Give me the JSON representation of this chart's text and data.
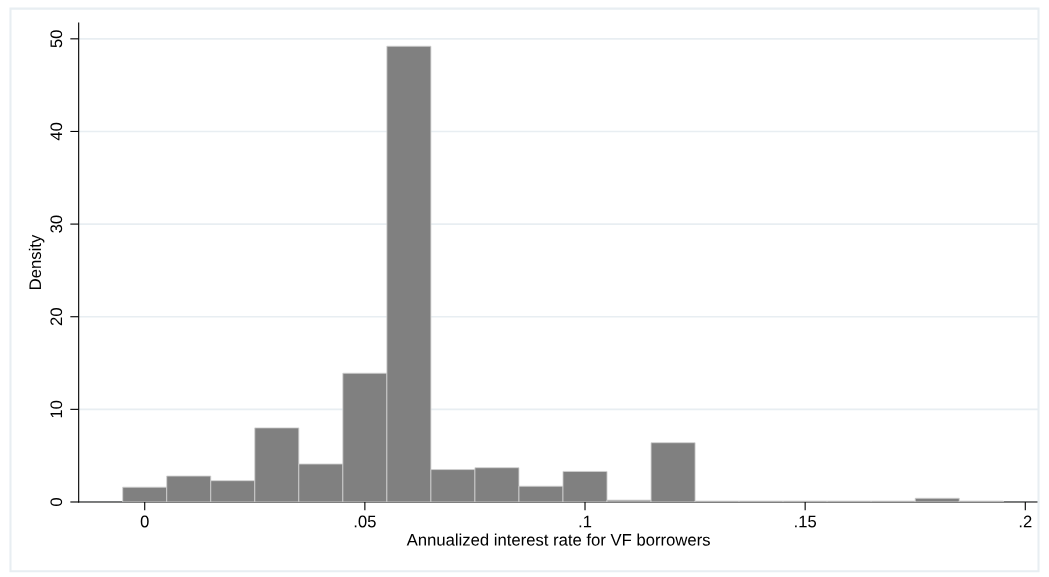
{
  "chart_data": {
    "type": "histogram",
    "xlabel": "Annualized interest rate for VF borrowers",
    "ylabel": "Density",
    "bins": [
      -0.005,
      0.005,
      0.015,
      0.025,
      0.035,
      0.045,
      0.055,
      0.065,
      0.075,
      0.085,
      0.095,
      0.105,
      0.115,
      0.125,
      0.135,
      0.145,
      0.155,
      0.165,
      0.175,
      0.185,
      0.195
    ],
    "values": [
      1.6,
      2.8,
      2.3,
      8.0,
      4.1,
      13.9,
      49.2,
      3.5,
      3.7,
      1.7,
      3.3,
      0.2,
      6.4,
      0.1,
      0.1,
      0.1,
      0.1,
      0.1,
      0.4,
      0.1
    ],
    "color": "#808080",
    "xlim": [
      -0.015,
      0.203
    ],
    "ylim": [
      0,
      51.7
    ],
    "xticks": [
      0,
      {
        "value": 0.05,
        "label": ".05"
      },
      {
        "value": 0.1,
        "label": ".1"
      },
      {
        "value": 0.15,
        "label": ".15"
      },
      {
        "value": 0.2,
        "label": ".2"
      }
    ],
    "yticks": [
      0,
      10,
      20,
      30,
      40,
      50
    ],
    "grid": "y"
  }
}
